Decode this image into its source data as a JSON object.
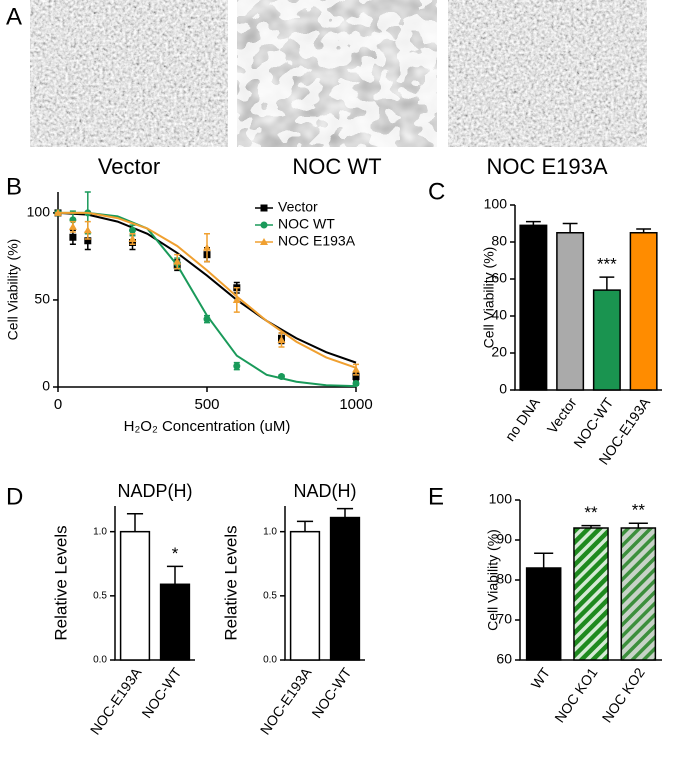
{
  "panel_a": {
    "label": "A",
    "captions": [
      "Vector",
      "NOC WT",
      "NOC E193A"
    ]
  },
  "chart_data": [
    {
      "type": "scatter",
      "panel": "B",
      "xlabel": "H₂O₂ Concentration (uM)",
      "ylabel": "Cell Viability (%)",
      "xlim": [
        0,
        1000
      ],
      "xticks": [
        0,
        500,
        1000
      ],
      "ylim": [
        0,
        112
      ],
      "yticks": [
        0,
        50,
        100
      ],
      "legend": "upper right",
      "series": [
        {
          "name": "Vector",
          "color": "#000000",
          "marker": "square",
          "x": [
            0,
            50,
            100,
            250,
            400,
            500,
            600,
            750,
            1000
          ],
          "values": [
            100,
            86,
            84,
            83,
            70,
            76,
            57,
            28,
            6
          ],
          "errors": [
            0,
            4,
            5,
            4,
            3,
            4,
            3,
            3,
            2
          ],
          "fit": {
            "x": [
              0,
              100,
              200,
              300,
              400,
              500,
              600,
              700,
              800,
              900,
              1000
            ],
            "values": [
              100,
              99,
              95,
              88,
              77,
              64,
              50,
              38,
              28,
              20,
              14
            ]
          }
        },
        {
          "name": "NOC WT",
          "color": "#1a9a5a",
          "marker": "circle",
          "x": [
            0,
            50,
            100,
            250,
            400,
            500,
            600,
            750,
            1000
          ],
          "values": [
            100,
            96,
            100,
            90,
            71,
            39,
            12,
            6,
            2
          ],
          "errors": [
            0,
            5,
            12,
            3,
            3,
            2,
            2,
            1,
            1
          ],
          "fit": {
            "x": [
              0,
              100,
              200,
              300,
              400,
              500,
              600,
              700,
              800,
              900,
              1000
            ],
            "values": [
              100,
              100,
              98,
              91,
              70,
              41,
              18,
              7,
              3,
              1,
              0.5
            ]
          }
        },
        {
          "name": "NOC E193A",
          "color": "#f0a030",
          "marker": "triangle",
          "x": [
            0,
            50,
            100,
            250,
            400,
            500,
            600,
            750,
            1000
          ],
          "values": [
            100,
            92,
            90,
            85,
            72,
            80,
            50,
            27,
            10
          ],
          "errors": [
            0,
            3,
            5,
            3,
            4,
            8,
            7,
            4,
            3
          ],
          "fit": {
            "x": [
              0,
              100,
              200,
              300,
              400,
              500,
              600,
              700,
              800,
              900,
              1000
            ],
            "values": [
              100,
              100,
              97,
              91,
              81,
              67,
              52,
              38,
              26,
              17,
              11
            ]
          }
        }
      ]
    },
    {
      "type": "bar",
      "panel": "C",
      "ylabel": "Cell Viability (%)",
      "categories": [
        "no DNA",
        "Vector",
        "NOC-WT",
        "NOC-E193A"
      ],
      "values": [
        89,
        85,
        54,
        85
      ],
      "errors": [
        2,
        5,
        7,
        2
      ],
      "colors": [
        "#000000",
        "#aaaaaa",
        "#1a9450",
        "#ff8c00"
      ],
      "ylim": [
        0,
        100
      ],
      "yticks": [
        0,
        20,
        40,
        60,
        80,
        100
      ],
      "annotations": [
        {
          "category": "NOC-WT",
          "text": "***"
        }
      ]
    },
    {
      "type": "bar",
      "panel": "D",
      "title": "NADP(H)",
      "ylabel": "Relative Levels",
      "categories": [
        "NOC-E193A",
        "NOC-WT"
      ],
      "values": [
        1.0,
        0.59
      ],
      "errors": [
        0.14,
        0.14
      ],
      "colors": [
        "#ffffff",
        "#000000"
      ],
      "ylim": [
        0,
        1.2
      ],
      "yticks": [
        {
          "value": 0,
          "label": "0.0"
        },
        {
          "value": 0.5,
          "label": "0.5"
        },
        {
          "value": 1,
          "label": "1.0"
        }
      ],
      "annotations": [
        {
          "category": "NOC-WT",
          "text": "*"
        }
      ]
    },
    {
      "type": "bar",
      "title": "NAD(H)",
      "ylabel": "Relative Levels",
      "categories": [
        "NOC-E193A",
        "NOC-WT"
      ],
      "values": [
        1.0,
        1.11
      ],
      "errors": [
        0.08,
        0.07
      ],
      "colors": [
        "#ffffff",
        "#000000"
      ],
      "ylim": [
        0,
        1.2
      ],
      "yticks": [
        {
          "value": 0,
          "label": "0.0"
        },
        {
          "value": 0.5,
          "label": "0.5"
        },
        {
          "value": 1,
          "label": "1.0"
        }
      ]
    },
    {
      "type": "bar",
      "panel": "E",
      "ylabel": "Cell Viability (%)",
      "categories": [
        "WT",
        "NOC KO1",
        "NOC KO2"
      ],
      "values": [
        83,
        93,
        93
      ],
      "errors": [
        3.7,
        0.6,
        1.2
      ],
      "colors": [
        "#000000",
        "#1f8a1f",
        "#c8d3c8"
      ],
      "hatch_colors": [
        null,
        "#d5ead5",
        "#3d8f3d"
      ],
      "ylim": [
        60,
        100
      ],
      "yticks": [
        60,
        70,
        80,
        90,
        100
      ],
      "annotations": [
        {
          "category": "NOC KO1",
          "text": "**"
        },
        {
          "category": "NOC KO2",
          "text": "**"
        }
      ]
    }
  ]
}
